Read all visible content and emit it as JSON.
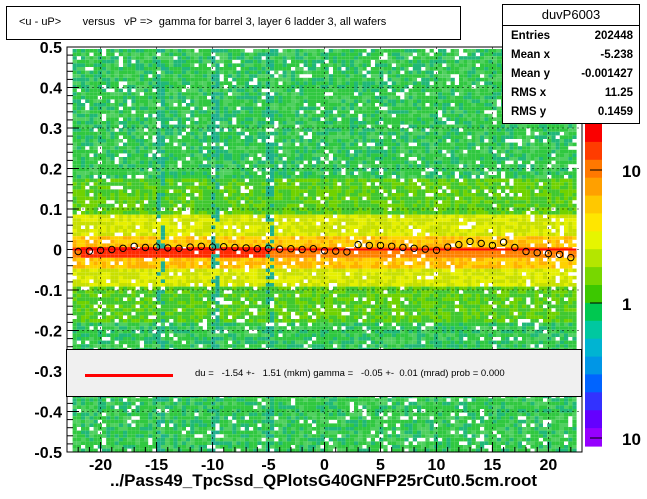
{
  "title": "<u - uP>       versus   vP =>  gamma for barrel 3, layer 6 ladder 3, all wafers",
  "stats": {
    "name": "duvP6003",
    "rows": [
      {
        "label": "Entries",
        "value": "202448"
      },
      {
        "label": "Mean x",
        "value": "-5.238"
      },
      {
        "label": "Mean y",
        "value": "-0.001427"
      },
      {
        "label": "RMS x",
        "value": "11.25"
      },
      {
        "label": "RMS y",
        "value": "0.1459"
      }
    ]
  },
  "legend": {
    "text": "du =   -1.54 +-   1.51 (mkm) gamma =   -0.05 +-  0.01 (mrad) prob = 0.000",
    "line_color": "#ff0000"
  },
  "footer": "../Pass49_TpcSsd_QPlotsG40GNFP25rCut0.5cm.root",
  "chart_data": {
    "type": "heatmap",
    "xlim": [
      -23,
      23
    ],
    "ylim": [
      -0.5,
      0.5
    ],
    "x_ticks": [
      -20,
      -15,
      -10,
      -5,
      0,
      5,
      10,
      15,
      20
    ],
    "x_tick_labels": [
      "-20",
      "-15",
      "-10",
      "-5",
      "0",
      "5",
      "10",
      "15",
      "20"
    ],
    "y_ticks": [
      -0.5,
      -0.4,
      -0.3,
      -0.2,
      -0.1,
      0,
      0.1,
      0.2,
      0.3,
      0.4,
      0.5
    ],
    "y_tick_labels": [
      "-0.5",
      "-0.4",
      "-0.3",
      "-0.2",
      "-0.1",
      "0",
      "0.1",
      "0.2",
      "0.3",
      "0.4",
      "0.5"
    ],
    "grid": true,
    "z_scale": "log",
    "z_tick_labels": [
      "10",
      "1",
      "10"
    ],
    "profile": {
      "x": [
        -22,
        -21,
        -20,
        -19,
        -18,
        -17,
        -16,
        -15,
        -14,
        -13,
        -12,
        -11,
        -10,
        -9,
        -8,
        -7,
        -6,
        -5,
        -4,
        -3,
        -2,
        -1,
        0,
        1,
        2,
        3,
        4,
        5,
        6,
        7,
        8,
        9,
        10,
        11,
        12,
        13,
        14,
        15,
        16,
        17,
        18,
        19,
        20,
        21,
        22
      ],
      "y": [
        -0.005,
        -0.004,
        -0.002,
        0.0,
        0.003,
        0.008,
        0.005,
        0.006,
        0.004,
        0.003,
        0.006,
        0.008,
        0.006,
        0.007,
        0.005,
        0.004,
        0.002,
        0.003,
        0.001,
        0.002,
        0.0,
        0.002,
        -0.003,
        -0.004,
        -0.006,
        0.012,
        0.01,
        0.01,
        0.008,
        0.005,
        0.003,
        0.001,
        -0.002,
        0.006,
        0.012,
        0.02,
        0.015,
        0.01,
        0.018,
        0.005,
        -0.005,
        -0.008,
        -0.01,
        -0.012,
        -0.02
      ]
    },
    "fit": {
      "x": [
        -22.5,
        22.5
      ],
      "y": [
        0.0,
        0.0
      ],
      "color": "#ff0000"
    }
  }
}
